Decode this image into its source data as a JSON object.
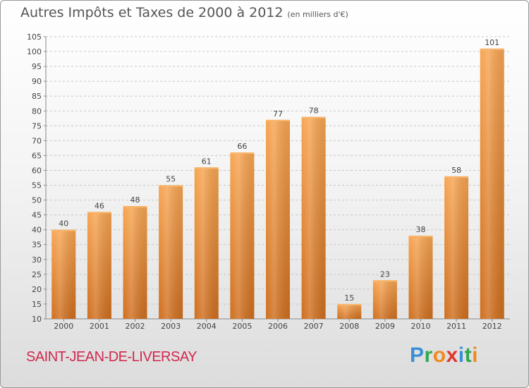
{
  "header": {
    "title": "Autres Impôts et Taxes de 2000 à 2012",
    "subtitle": "(en milliers d'€)"
  },
  "footer": {
    "location": "SAINT-JEAN-DE-LIVERSAY",
    "logo": {
      "letters": [
        "P",
        "r",
        "o",
        "x",
        "i",
        "t",
        "i"
      ],
      "colors": [
        "#3a8fd6",
        "#2fa84f",
        "#f08a1c",
        "#e0342c",
        "#3a8fd6",
        "#2fa84f",
        "#f08a1c"
      ]
    }
  },
  "chart_data": {
    "type": "bar",
    "categories": [
      "2000",
      "2001",
      "2002",
      "2003",
      "2004",
      "2005",
      "2006",
      "2007",
      "2008",
      "2009",
      "2010",
      "2011",
      "2012"
    ],
    "values": [
      40,
      46,
      48,
      55,
      61,
      66,
      77,
      78,
      15,
      23,
      38,
      58,
      101
    ],
    "ylim": [
      10,
      105
    ],
    "yticks": [
      10,
      15,
      20,
      25,
      30,
      35,
      40,
      45,
      50,
      55,
      60,
      65,
      70,
      75,
      80,
      85,
      90,
      95,
      100,
      105
    ],
    "grid": true,
    "bar_color": "#f0903a",
    "bar_color_dark": "#d0701f"
  }
}
